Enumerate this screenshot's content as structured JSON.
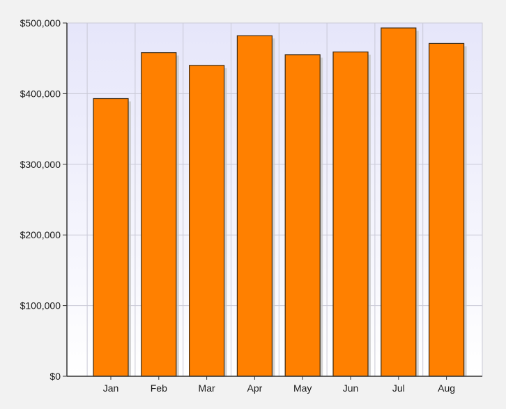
{
  "chart_data": {
    "type": "bar",
    "categories": [
      "Jan",
      "Feb",
      "Mar",
      "Apr",
      "May",
      "Jun",
      "Jul",
      "Aug"
    ],
    "values": [
      393000,
      458000,
      440000,
      482000,
      455000,
      459000,
      493000,
      471000
    ],
    "title": "",
    "xlabel": "",
    "ylabel": "",
    "ylim": [
      0,
      500000
    ],
    "y_ticks": [
      0,
      100000,
      200000,
      300000,
      400000,
      500000
    ],
    "y_tick_labels": [
      "$0",
      "$100,000",
      "$200,000",
      "$300,000",
      "$400,000",
      "$500,000"
    ],
    "grid": true,
    "legend": "none",
    "colors": {
      "bar": "#ff8000",
      "bar_border": "#3d2a12",
      "plot_top": "#e6e6fa",
      "plot_bottom": "#ffffff",
      "grid": "#c9c9d6",
      "axis": "#333333",
      "background": "#f2f2f2",
      "shadow": "#c8c8c8"
    }
  }
}
